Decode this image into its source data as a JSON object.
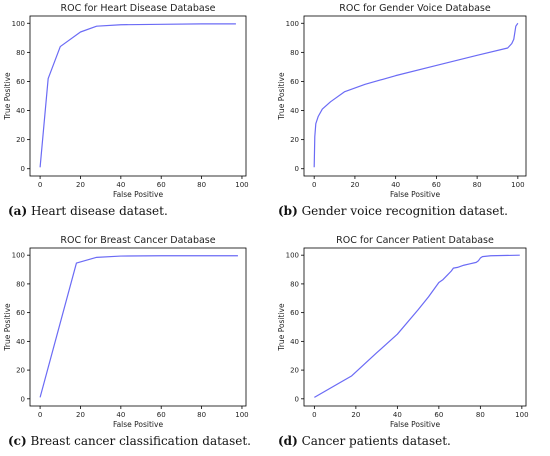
{
  "chart_data": [
    {
      "type": "line",
      "title": "ROC for Heart Disease Database",
      "xlabel": "False Positive",
      "ylabel": "True Positive",
      "xlim": [
        -5,
        102
      ],
      "ylim": [
        -5,
        105
      ],
      "xticks": [
        0,
        20,
        40,
        60,
        80,
        100
      ],
      "yticks": [
        0,
        20,
        40,
        60,
        80,
        100
      ],
      "grid": false,
      "color": "#6b6bf5",
      "x": [
        0,
        4,
        10,
        20,
        28,
        40,
        60,
        80,
        97
      ],
      "y": [
        1,
        62,
        84,
        94,
        98,
        99,
        99.3,
        99.6,
        99.6
      ],
      "caption_letter": "(a)",
      "caption_text": "Heart disease dataset."
    },
    {
      "type": "line",
      "title": "ROC for Gender Voice Database",
      "xlabel": "False Positive",
      "ylabel": "True Positive",
      "xlim": [
        -5,
        104
      ],
      "ylim": [
        -5,
        105
      ],
      "xticks": [
        0,
        20,
        40,
        60,
        80,
        100
      ],
      "yticks": [
        0,
        20,
        40,
        60,
        80,
        100
      ],
      "grid": false,
      "color": "#6b6bf5",
      "x": [
        0,
        0.3,
        0.8,
        2,
        4,
        8,
        15,
        25,
        40,
        60,
        80,
        95,
        97,
        98,
        99,
        100
      ],
      "y": [
        1,
        22,
        31,
        36,
        41,
        46,
        53,
        58,
        64,
        71,
        78,
        83,
        86,
        89,
        98,
        100
      ],
      "caption_letter": "(b)",
      "caption_text": "Gender voice recognition dataset."
    },
    {
      "type": "line",
      "title": "ROC for Breast Cancer Database",
      "xlabel": "False Positive",
      "ylabel": "True Positive",
      "xlim": [
        -5,
        102
      ],
      "ylim": [
        -5,
        105
      ],
      "xticks": [
        0,
        20,
        40,
        60,
        80,
        100
      ],
      "yticks": [
        0,
        20,
        40,
        60,
        80,
        100
      ],
      "grid": false,
      "color": "#6b6bf5",
      "x": [
        0,
        18,
        28,
        40,
        60,
        80,
        98
      ],
      "y": [
        1,
        94.5,
        98.5,
        99.4,
        99.6,
        99.6,
        99.6
      ],
      "caption_letter": "(c)",
      "caption_text": "Breast cancer classification dataset."
    },
    {
      "type": "line",
      "title": "ROC for Cancer Patient Database",
      "xlabel": "False Positive",
      "ylabel": "True Positive",
      "xlim": [
        -5,
        102
      ],
      "ylim": [
        -5,
        105
      ],
      "xticks": [
        0,
        20,
        40,
        60,
        80,
        100
      ],
      "yticks": [
        0,
        20,
        40,
        60,
        80,
        100
      ],
      "grid": false,
      "color": "#6b6bf5",
      "x": [
        0,
        18,
        30,
        40,
        50,
        55,
        60,
        62,
        64,
        66,
        67,
        69,
        72,
        75,
        78,
        79,
        80,
        81,
        85,
        99
      ],
      "y": [
        1,
        16,
        32,
        45,
        62,
        71,
        81,
        83,
        86,
        89,
        91,
        91.5,
        93,
        94,
        95,
        96,
        98,
        99,
        99.6,
        100
      ],
      "caption_letter": "(d)",
      "caption_text": "Cancer patients dataset."
    }
  ]
}
